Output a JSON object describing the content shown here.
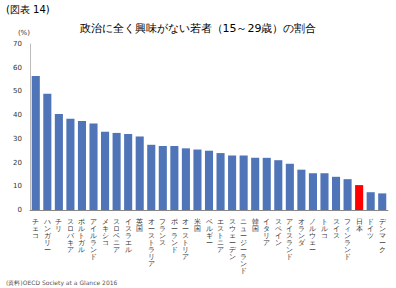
{
  "chart_data": {
    "type": "bar",
    "title": "政治に全く興味がない若者（15～29歳）の割合",
    "y_label": "(%)",
    "annotations": [
      "(図表 14)",
      "(資料)OECD Society at a Glance 2016"
    ],
    "categories": [
      "チェコ",
      "ハンガリー",
      "チリ",
      "スロバキア",
      "ポルトガル",
      "アイルランド",
      "メキシコ",
      "スロベニア",
      "イスラエル",
      "英国",
      "オーストラリア",
      "フランス",
      "ポーランド",
      "オーストリア",
      "米国",
      "ベルギー",
      "エストニア",
      "スウェーデン",
      "ニュージーランド",
      "韓国",
      "イタリア",
      "スペイン",
      "アイスランド",
      "オランダ",
      "ノルウェー",
      "トルコ",
      "スイス",
      "フィンランド",
      "日本",
      "ドイツ",
      "デンマーク"
    ],
    "values": [
      56.5,
      49,
      40.5,
      38.5,
      37.5,
      36.5,
      33,
      32.5,
      32,
      31,
      27.5,
      27,
      27,
      26,
      25.5,
      25,
      24,
      23,
      23,
      22,
      22,
      21,
      19.5,
      17,
      15.5,
      15.5,
      14,
      13,
      10.5,
      7.5,
      7
    ],
    "colors": [
      "#4f74b8",
      "#4f74b8",
      "#4f74b8",
      "#4f74b8",
      "#4f74b8",
      "#4f74b8",
      "#4f74b8",
      "#4f74b8",
      "#4f74b8",
      "#4f74b8",
      "#4f74b8",
      "#4f74b8",
      "#4f74b8",
      "#4f74b8",
      "#4f74b8",
      "#4f74b8",
      "#4f74b8",
      "#4f74b8",
      "#4f74b8",
      "#4f74b8",
      "#4f74b8",
      "#4f74b8",
      "#4f74b8",
      "#4f74b8",
      "#4f74b8",
      "#4f74b8",
      "#4f74b8",
      "#4f74b8",
      "#ff0000",
      "#4f74b8",
      "#4f74b8"
    ],
    "ylim": [
      0,
      70
    ],
    "yticks": [
      0,
      10,
      20,
      30,
      40,
      50,
      60,
      70
    ],
    "grid": false
  }
}
